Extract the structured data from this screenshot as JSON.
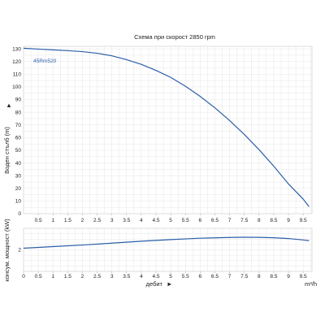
{
  "chart_data": [
    {
      "type": "line",
      "title": "Схема при скорост 2850 rpm",
      "model_label": "45Rm520",
      "ylabel": "Воден стълб (m)",
      "ylabel_arrow": "▲",
      "xlim": [
        0,
        9.8
      ],
      "ylim": [
        0,
        132
      ],
      "x_ticks": [
        "0.5",
        "1",
        "1.5",
        "2",
        "2.5",
        "3",
        "3.5",
        "4",
        "4.5",
        "5",
        "5.5",
        "6",
        "6.5",
        "7",
        "7.5",
        "8",
        "8.5",
        "9",
        "9.5"
      ],
      "y_ticks": [
        "0",
        "10",
        "20",
        "30",
        "40",
        "50",
        "60",
        "70",
        "80",
        "90",
        "100",
        "110",
        "120",
        "130"
      ],
      "grid": true,
      "series": [
        {
          "color": "#2b5ea8",
          "x": [
            0,
            0.5,
            1,
            1.5,
            2,
            2.5,
            3,
            3.5,
            4,
            4.5,
            5,
            5.5,
            6,
            6.5,
            7,
            7.5,
            8,
            8.5,
            9,
            9.5,
            9.7
          ],
          "y": [
            130.5,
            129.8,
            129.2,
            128.6,
            127.8,
            126.5,
            124.5,
            121.5,
            117.8,
            113,
            107.5,
            100.5,
            92.5,
            83.5,
            73.5,
            62.5,
            50.5,
            37.5,
            23.5,
            11.5,
            5.5
          ]
        }
      ]
    },
    {
      "type": "line",
      "ylabel": "консум. мощност (kW)",
      "xlabel": "дебит",
      "xlabel_arrow": "►",
      "x_unit": "m³/h",
      "xlim": [
        0,
        9.8
      ],
      "ylim": [
        0,
        4
      ],
      "x_ticks": [
        "0",
        "0.5",
        "1",
        "1.5",
        "2",
        "2.5",
        "3",
        "3.5",
        "4",
        "4.5",
        "5",
        "5.5",
        "6",
        "6.5",
        "7",
        "7.5",
        "8",
        "8.5",
        "9",
        "9.5"
      ],
      "y_ticks": [
        "2"
      ],
      "grid": true,
      "series": [
        {
          "color": "#2b5ea8",
          "x": [
            0,
            1,
            2,
            3,
            4,
            5,
            6,
            7,
            7.5,
            8,
            8.5,
            9,
            9.5,
            9.7
          ],
          "y": [
            2.15,
            2.3,
            2.45,
            2.62,
            2.8,
            2.95,
            3.08,
            3.15,
            3.17,
            3.16,
            3.12,
            3.05,
            2.92,
            2.85
          ]
        }
      ]
    }
  ]
}
